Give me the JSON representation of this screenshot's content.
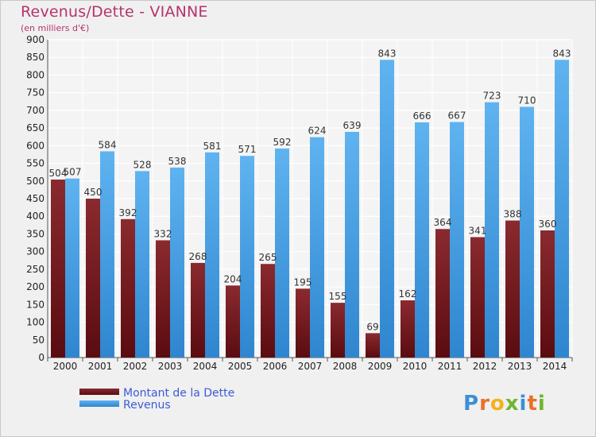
{
  "chart_data": {
    "type": "bar",
    "title": "Revenus/Dette - VIANNE",
    "subtitle": "(en milliers d'€)",
    "categories": [
      "2000",
      "2001",
      "2002",
      "2003",
      "2004",
      "2005",
      "2006",
      "2007",
      "2008",
      "2009",
      "2010",
      "2011",
      "2012",
      "2013",
      "2014"
    ],
    "series": [
      {
        "name": "Montant de la Dette",
        "color": "#7a1d22",
        "values": [
          504,
          450,
          392,
          332,
          268,
          204,
          265,
          195,
          155,
          69,
          162,
          364,
          341,
          388,
          360
        ]
      },
      {
        "name": "Revenus",
        "color": "#4aa3e6",
        "values": [
          507,
          584,
          528,
          538,
          581,
          571,
          592,
          624,
          639,
          843,
          666,
          667,
          723,
          710,
          843
        ]
      }
    ],
    "ylim": [
      0,
      900
    ],
    "yticks": [
      0,
      50,
      100,
      150,
      200,
      250,
      300,
      350,
      400,
      450,
      500,
      550,
      600,
      650,
      700,
      750,
      800,
      850,
      900
    ],
    "grid": true,
    "legend": "bottom-left"
  },
  "brand": {
    "logo_text": "Proxiti"
  }
}
